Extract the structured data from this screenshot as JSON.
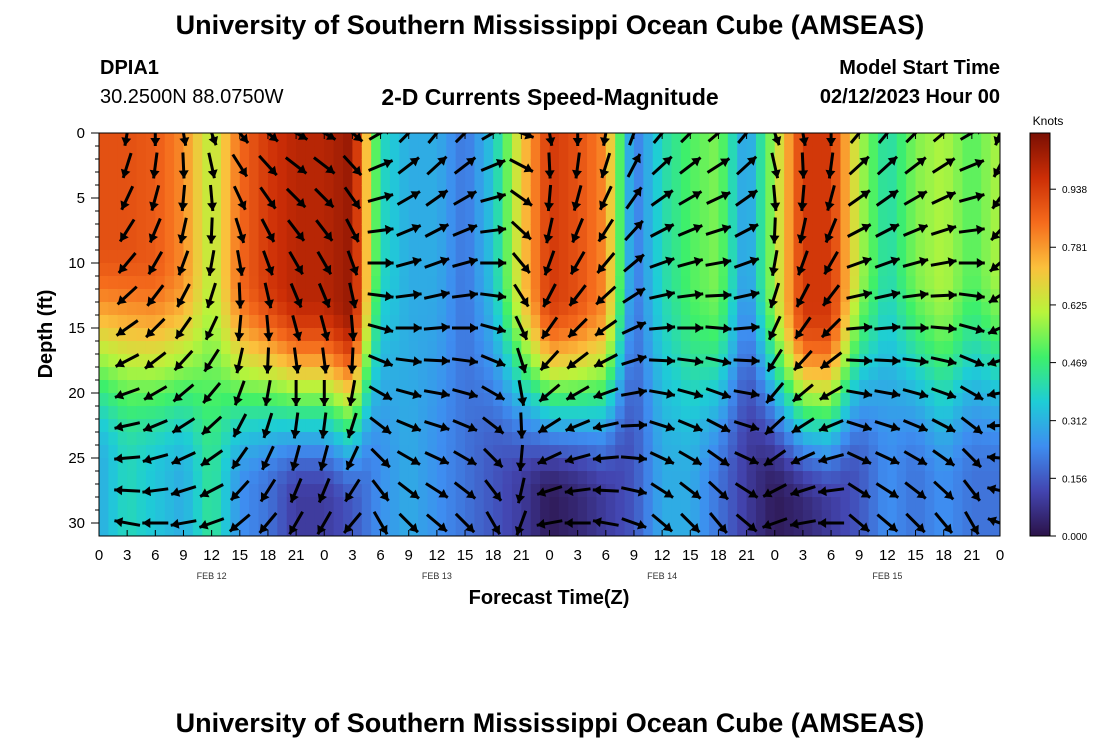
{
  "header": {
    "title": "University of Southern Mississippi Ocean Cube (AMSEAS)",
    "footer_title": "University of Southern Mississippi Ocean Cube (AMSEAS)",
    "station_id": "DPIA1",
    "station_location": "30.2500N  88.0750W",
    "plot_title": "2-D Currents Speed-Magnitude",
    "model_start_label": "Model Start Time",
    "model_start_value": "02/12/2023 Hour 00"
  },
  "chart_data": {
    "type": "heatmap",
    "title": "2-D Currents Speed-Magnitude",
    "xlabel": "Forecast Time(Z)",
    "ylabel": "Depth (ft)",
    "x_tick_labels": [
      "0",
      "3",
      "6",
      "9",
      "12",
      "15",
      "18",
      "21",
      "0",
      "3",
      "6",
      "9",
      "12",
      "15",
      "18",
      "21",
      "0",
      "3",
      "6",
      "9",
      "12",
      "15",
      "18",
      "21",
      "0",
      "3",
      "6",
      "9",
      "12",
      "15",
      "18",
      "21",
      "0"
    ],
    "x_range_hours": [
      0,
      96
    ],
    "date_labels": [
      {
        "hour": 12,
        "label": "FEB 12"
      },
      {
        "hour": 36,
        "label": "FEB 13"
      },
      {
        "hour": 60,
        "label": "FEB 14"
      },
      {
        "hour": 84,
        "label": "FEB 15"
      }
    ],
    "y_ticks": [
      0,
      5,
      10,
      15,
      20,
      25,
      30
    ],
    "y_range": [
      0,
      31
    ],
    "y_inverted": true,
    "colorbar": {
      "title": "Knots",
      "ticks": [
        "0.000",
        "0.156",
        "0.312",
        "0.469",
        "0.625",
        "0.781",
        "0.938"
      ],
      "range": [
        0,
        1.09
      ],
      "colors": [
        "#2b1248",
        "#4345b0",
        "#3e8df0",
        "#1ecdd6",
        "#3ef06a",
        "#b9f43b",
        "#fbc03c",
        "#f56b1c",
        "#cc2e06",
        "#7a0f03"
      ]
    },
    "speed_profile": {
      "description_hours": [
        0,
        3,
        6,
        9,
        12,
        15,
        18,
        21,
        24,
        27,
        30,
        33,
        36,
        39,
        42,
        45,
        48,
        51,
        54,
        57,
        60,
        63,
        66,
        69,
        72,
        75,
        78,
        81,
        84,
        87,
        90,
        93,
        96
      ],
      "surface_knots": [
        0.9,
        0.9,
        0.88,
        0.8,
        0.6,
        0.85,
        0.95,
        1.0,
        1.0,
        1.05,
        0.4,
        0.3,
        0.3,
        0.2,
        0.35,
        0.7,
        0.95,
        0.9,
        0.8,
        0.2,
        0.4,
        0.5,
        0.55,
        0.25,
        0.6,
        0.95,
        0.95,
        0.6,
        0.4,
        0.55,
        0.6,
        0.5,
        0.6
      ],
      "bottom_knots": [
        0.3,
        0.4,
        0.35,
        0.3,
        0.45,
        0.25,
        0.2,
        0.1,
        0.1,
        0.15,
        0.25,
        0.3,
        0.25,
        0.2,
        0.15,
        0.1,
        0.02,
        0.05,
        0.1,
        0.15,
        0.3,
        0.3,
        0.2,
        0.1,
        0.02,
        0.05,
        0.1,
        0.15,
        0.25,
        0.2,
        0.25,
        0.2,
        0.2
      ],
      "decay_depth_ft": [
        15,
        15,
        17,
        18,
        18,
        20,
        20,
        22,
        22,
        24,
        16,
        16,
        16,
        16,
        18,
        20,
        22,
        22,
        22,
        16,
        18,
        20,
        20,
        16,
        22,
        24,
        24,
        18,
        16,
        18,
        20,
        18,
        18
      ],
      "direction_deg": [
        200,
        190,
        180,
        170,
        160,
        140,
        130,
        120,
        120,
        130,
        60,
        45,
        40,
        45,
        60,
        110,
        170,
        180,
        190,
        20,
        40,
        45,
        50,
        40,
        160,
        170,
        180,
        40,
        40,
        45,
        50,
        60,
        200
      ]
    }
  }
}
